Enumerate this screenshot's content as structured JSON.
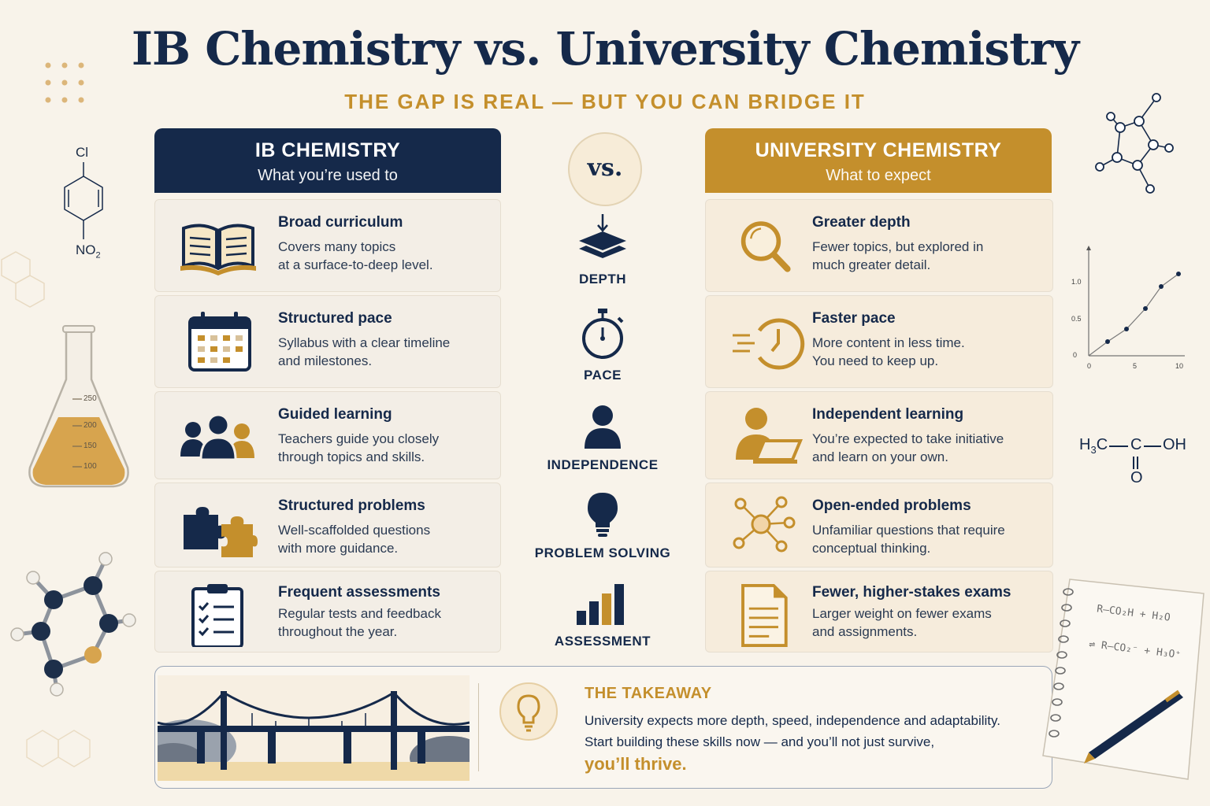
{
  "title": "IB Chemistry vs. University Chemistry",
  "subtitle": "THE GAP IS REAL — BUT YOU CAN BRIDGE IT",
  "vs_label": "vs.",
  "ib": {
    "heading": "IB CHEMISTRY",
    "subheading": "What you’re used to",
    "color": "#15294a",
    "rows": [
      {
        "icon": "open-book-icon",
        "title": "Broad curriculum",
        "line1": "Covers many topics",
        "line2": "at a surface-to-deep level."
      },
      {
        "icon": "calendar-icon",
        "title": "Structured pace",
        "line1": "Syllabus with a clear timeline",
        "line2": "and milestones."
      },
      {
        "icon": "group-people-icon",
        "title": "Guided learning",
        "line1": "Teachers guide you closely",
        "line2": "through topics and skills."
      },
      {
        "icon": "puzzle-pieces-icon",
        "title": "Structured problems",
        "line1": "Well-scaffolded questions",
        "line2": "with more guidance."
      },
      {
        "icon": "clipboard-checklist-icon",
        "title": "Frequent assessments",
        "line1": "Regular tests and feedback",
        "line2": "throughout the year."
      }
    ]
  },
  "uni": {
    "heading": "UNIVERSITY CHEMISTRY",
    "subheading": "What to expect",
    "color": "#c48f2c",
    "rows": [
      {
        "icon": "magnifying-glass-icon",
        "title": "Greater depth",
        "line1": "Fewer topics, but explored in",
        "line2": "much greater detail."
      },
      {
        "icon": "fast-clock-icon",
        "title": "Faster pace",
        "line1": "More content in less time.",
        "line2": "You need to keep up."
      },
      {
        "icon": "person-laptop-icon",
        "title": "Independent learning",
        "line1": "You’re expected to take initiative",
        "line2": "and learn on your own."
      },
      {
        "icon": "network-nodes-icon",
        "title": "Open-ended problems",
        "line1": "Unfamiliar questions that require",
        "line2": "conceptual thinking."
      },
      {
        "icon": "document-icon",
        "title": "Fewer, higher-stakes exams",
        "line1": "Larger weight on fewer exams",
        "line2": "and assignments."
      }
    ]
  },
  "middle": [
    {
      "icon": "layers-depth-icon",
      "label": "DEPTH"
    },
    {
      "icon": "stopwatch-icon",
      "label": "PACE"
    },
    {
      "icon": "person-icon",
      "label": "INDEPENDENCE"
    },
    {
      "icon": "lightbulb-icon",
      "label": "PROBLEM SOLVING"
    },
    {
      "icon": "bar-chart-icon",
      "label": "ASSESSMENT"
    }
  ],
  "takeaway": {
    "title": "THE TAKEAWAY",
    "line1": "University expects more depth, speed, independence and adaptability.",
    "line2": "Start building these skills now — and you’ll not just survive,",
    "emphasis": "you’ll thrive."
  },
  "decor": {
    "benzene_top": "Cl",
    "benzene_bottom": "NO",
    "benzene_bottom_sub": "2",
    "flask_marks": [
      "250",
      "200",
      "150",
      "100"
    ],
    "graph_y_ticks": [
      "1.0",
      "0.5",
      "0"
    ],
    "graph_x_ticks": [
      "0",
      "5",
      "10"
    ],
    "acetic_left": "H",
    "acetic_left_sub": "3",
    "acetic_c": "C",
    "acetic_mid": "C",
    "acetic_oh": "OH",
    "acetic_o": "O",
    "note_line1": "R–CO₂H  +  H₂O",
    "note_line2": "⇌  R–CO₂⁻  +  H₃O⁺"
  }
}
